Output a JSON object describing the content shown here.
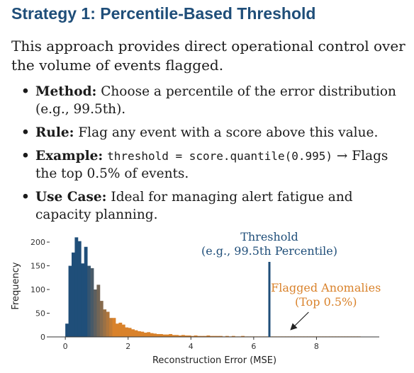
{
  "title": "Strategy 1: Percentile-Based Threshold",
  "intro": "This approach provides direct operational control over the volume of events flagged.",
  "bullets": [
    {
      "label": "Method:",
      "text": " Choose a percentile of the error distribution (e.g., 99.5th)."
    },
    {
      "label": "Rule:",
      "text": " Flag any event with a score above this value."
    },
    {
      "label": "Example:",
      "code": "threshold = score.quantile(0.995)",
      "text": " → Flags the top 0.5% of events."
    },
    {
      "label": "Use Case:",
      "text": " Ideal for managing alert fatigue and capacity planning."
    }
  ],
  "chart_data": {
    "type": "bar",
    "xlabel": "Reconstruction Error (MSE)",
    "ylabel": "Frequency",
    "xlim": [
      -0.5,
      10
    ],
    "ylim": [
      0,
      215
    ],
    "x_ticks": [
      0,
      2,
      4,
      6,
      8
    ],
    "y_ticks": [
      0,
      50,
      100,
      150,
      200
    ],
    "bin_width": 0.1,
    "bin_start": 0.0,
    "values": [
      28,
      150,
      178,
      210,
      202,
      155,
      190,
      150,
      145,
      100,
      110,
      76,
      58,
      53,
      40,
      40,
      28,
      30,
      26,
      20,
      19,
      16,
      14,
      12,
      11,
      9,
      10,
      8,
      7,
      6,
      6,
      5,
      5,
      6,
      4,
      4,
      3,
      4,
      3,
      3,
      2,
      3,
      2,
      2,
      2,
      3,
      2,
      2,
      2,
      2,
      1,
      2,
      1,
      2,
      1,
      1,
      2,
      1,
      1,
      1,
      1,
      1,
      1,
      1,
      1,
      1,
      1,
      1,
      1,
      1,
      1,
      1,
      1,
      1,
      1,
      1,
      1,
      1,
      1,
      1,
      1,
      1,
      1,
      1,
      1,
      1,
      1,
      1,
      1,
      1,
      1,
      1,
      1,
      1
    ],
    "threshold_x": 6.5,
    "threshold_label_1": "Threshold",
    "threshold_label_2": "(e.g., 99.5th Percentile)",
    "flag_label_1": "Flagged Anomalies",
    "flag_label_2": "(Top 0.5%)",
    "colors": {
      "normal": "#1f4e79",
      "tail": "#d9822b",
      "threshold": "#1f4e79"
    }
  }
}
